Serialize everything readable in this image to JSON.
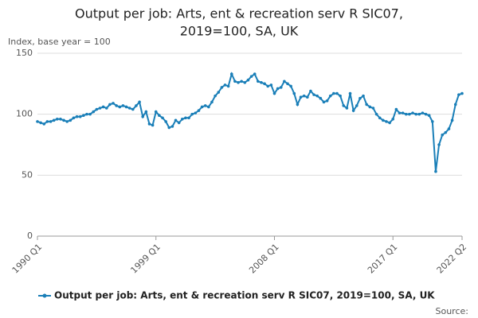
{
  "chart_data": {
    "type": "line",
    "title": [
      "Output per job: Arts, ent & recreation serv R SIC07,",
      "2019=100, SA, UK"
    ],
    "y_label": "Index, base year = 100",
    "source": "Source:",
    "categories": [
      "1990 Q1",
      null,
      null,
      null,
      null,
      null,
      null,
      null,
      null,
      null,
      null,
      null,
      null,
      null,
      null,
      null,
      null,
      null,
      null,
      null,
      null,
      null,
      null,
      null,
      null,
      null,
      null,
      null,
      null,
      null,
      null,
      null,
      null,
      null,
      null,
      null,
      "1999 Q1",
      null,
      null,
      null,
      null,
      null,
      null,
      null,
      null,
      null,
      null,
      null,
      null,
      null,
      null,
      null,
      null,
      null,
      null,
      null,
      null,
      null,
      null,
      null,
      null,
      null,
      null,
      null,
      null,
      null,
      null,
      null,
      null,
      null,
      null,
      null,
      "2008 Q1",
      null,
      null,
      null,
      null,
      null,
      null,
      null,
      null,
      null,
      null,
      null,
      null,
      null,
      null,
      null,
      null,
      null,
      null,
      null,
      null,
      null,
      null,
      null,
      null,
      null,
      null,
      null,
      null,
      null,
      null,
      null,
      null,
      null,
      null,
      null,
      "2017 Q1",
      null,
      null,
      null,
      null,
      null,
      null,
      null,
      null,
      null,
      null,
      null,
      null,
      null,
      null,
      null,
      null,
      null,
      null,
      null,
      null,
      "2022 Q2"
    ],
    "series": [
      {
        "name": "Output per job: Arts, ent & recreation serv R SIC07, 2019=100, SA, UK",
        "color": "#1a7fb8",
        "values": [
          94,
          93,
          92,
          94,
          94,
          95,
          96,
          96,
          95,
          94,
          95,
          97,
          98,
          98,
          99,
          100,
          100,
          102,
          104,
          105,
          106,
          105,
          108,
          109,
          107,
          106,
          107,
          106,
          105,
          104,
          107,
          110,
          98,
          102,
          92,
          91,
          102,
          99,
          97,
          94,
          89,
          90,
          95,
          93,
          96,
          97,
          97,
          100,
          101,
          103,
          106,
          107,
          106,
          110,
          115,
          118,
          122,
          124,
          123,
          133,
          127,
          126,
          127,
          126,
          128,
          131,
          133,
          127,
          126,
          125,
          123,
          124,
          117,
          121,
          122,
          127,
          125,
          123,
          117,
          108,
          114,
          115,
          114,
          119,
          116,
          115,
          113,
          110,
          111,
          115,
          117,
          117,
          115,
          107,
          105,
          117,
          103,
          107,
          113,
          115,
          108,
          106,
          105,
          100,
          97,
          95,
          94,
          93,
          96,
          104,
          101,
          101,
          100,
          100,
          101,
          100,
          100,
          101,
          100,
          99,
          94,
          53,
          75,
          83,
          85,
          88,
          95,
          108,
          116,
          117
        ]
      }
    ],
    "ylim": [
      0,
      150
    ],
    "yticks": [
      0,
      50,
      100,
      150
    ],
    "grid": true
  }
}
